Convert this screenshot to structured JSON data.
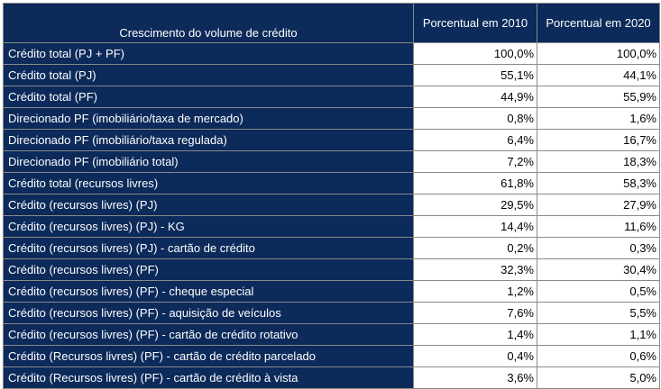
{
  "table": {
    "header": {
      "label": "Crescimento do volume de crédito",
      "col_2010": "Porcentual em 2010",
      "col_2020": "Porcentual em 2020"
    },
    "rows": [
      {
        "label": "Crédito total (PJ + PF)",
        "v2010": "100,0%",
        "v2020": "100,0%"
      },
      {
        "label": "Crédito total (PJ)",
        "v2010": "55,1%",
        "v2020": "44,1%"
      },
      {
        "label": "Crédito total (PF)",
        "v2010": "44,9%",
        "v2020": "55,9%"
      },
      {
        "label": "Direcionado PF (imobiliário/taxa de mercado)",
        "v2010": "0,8%",
        "v2020": "1,6%"
      },
      {
        "label": "Direcionado PF (imobiliário/taxa regulada)",
        "v2010": "6,4%",
        "v2020": "16,7%"
      },
      {
        "label": "Direcionado PF (imobiliário total)",
        "v2010": "7,2%",
        "v2020": "18,3%"
      },
      {
        "label": "Crédito total (recursos livres)",
        "v2010": "61,8%",
        "v2020": "58,3%"
      },
      {
        "label": "Crédito (recursos livres) (PJ)",
        "v2010": "29,5%",
        "v2020": "27,9%"
      },
      {
        "label": "Crédito (recursos livres) (PJ) - KG",
        "v2010": "14,4%",
        "v2020": "11,6%"
      },
      {
        "label": "Crédito (recursos livres) (PJ) - cartão de crédito",
        "v2010": "0,2%",
        "v2020": "0,3%"
      },
      {
        "label": "Crédito (recursos livres) (PF)",
        "v2010": "32,3%",
        "v2020": "30,4%"
      },
      {
        "label": "Crédito (recursos livres) (PF) - cheque especial",
        "v2010": "1,2%",
        "v2020": "0,5%"
      },
      {
        "label": "Crédito (recursos livres) (PF) - aquisição de veículos",
        "v2010": "7,6%",
        "v2020": "5,5%"
      },
      {
        "label": "Crédito (recursos livres) (PF) - cartão de crédito rotativo",
        "v2010": "1,4%",
        "v2020": "1,1%"
      },
      {
        "label": "Crédito (Recursos livres) (PF) - cartão de crédito parcelado",
        "v2010": "0,4%",
        "v2020": "0,6%"
      },
      {
        "label": "Crédito (Recursos livres) (PF) - cartão de crédito à vista",
        "v2010": "3,6%",
        "v2020": "5,0%"
      }
    ]
  }
}
